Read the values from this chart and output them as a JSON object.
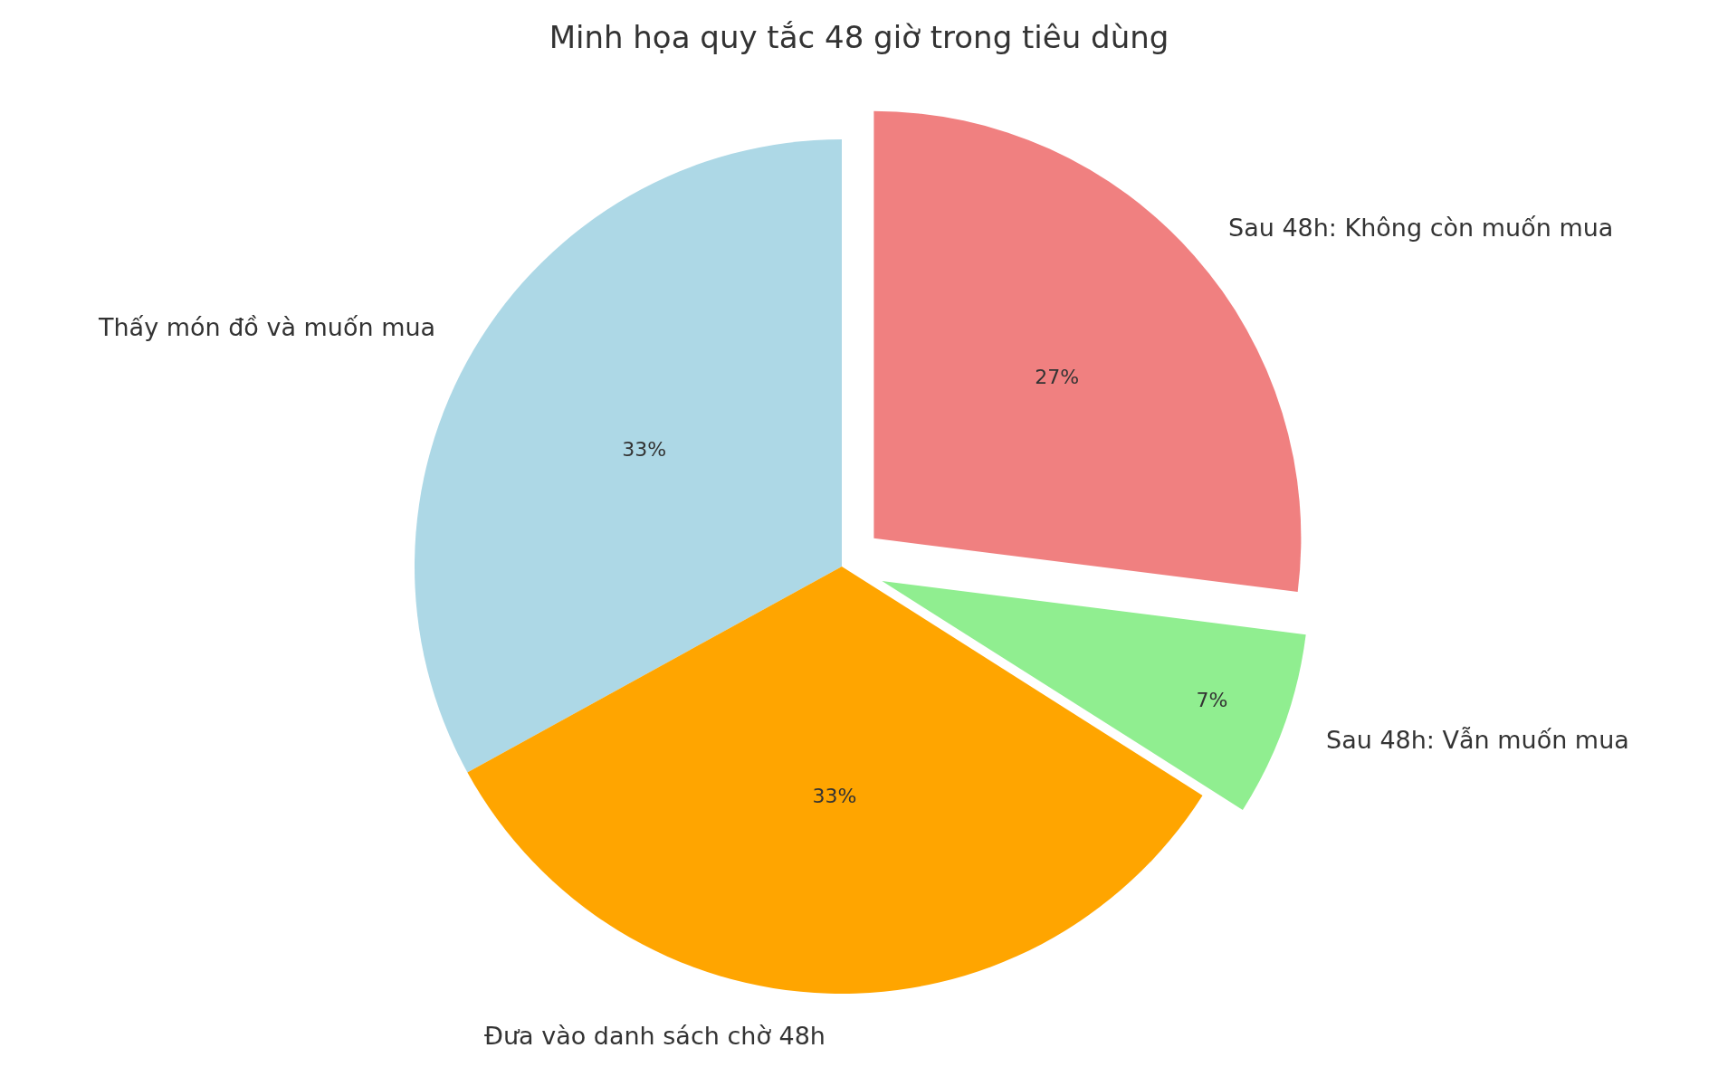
{
  "chart_data": {
    "type": "pie",
    "title": "Minh họa quy tắc 48 giờ trong tiêu dùng",
    "categories": [
      "Thấy món đồ và muốn mua",
      "Đưa vào danh sách chờ 48h",
      "Sau 48h: Vẫn muốn mua",
      "Sau 48h: Không còn muốn mua"
    ],
    "values": [
      33,
      33,
      7,
      27
    ],
    "value_labels": [
      "33%",
      "33%",
      "7%",
      "27%"
    ],
    "colors": [
      "#add8e6",
      "#ffa500",
      "#90ee90",
      "#f08080"
    ],
    "legend": false
  }
}
